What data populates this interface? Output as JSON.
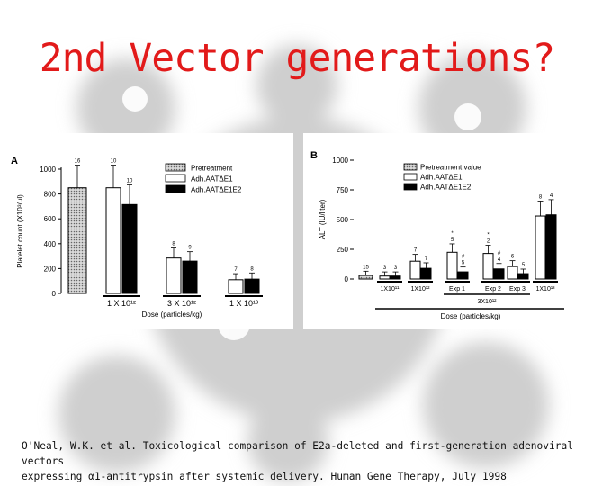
{
  "slide": {
    "title": "2nd Vector generations?",
    "citation_line1": "O'Neal, W.K. et al. Toxicological comparison of E2a-deleted and first-generation adenoviral vectors",
    "citation_line2": "expressing α1-antitrypsin after systemic delivery. Human Gene Therapy, July 1998",
    "colors": {
      "title": "#e21a1a",
      "bar_outline": "#000000",
      "bar_e1e2": "#000000",
      "bar_e1": "#ffffff",
      "bar_pre": "#d9d9d9"
    }
  },
  "chart_data": [
    {
      "type": "bar",
      "panel_label": "A",
      "ylabel": "Platelet count (X10³/µl)",
      "xlabel": "Dose (particles/kg)",
      "ylim": [
        0,
        1000
      ],
      "yticks": [
        "0",
        "200",
        "400",
        "600",
        "800",
        "1000"
      ],
      "dose_groups": [
        "1 X 10¹²",
        "3 X 10¹²",
        "1 X 10¹³"
      ],
      "legend": [
        "Pretreatment",
        "Adh.AATΔE1",
        "Adh.AATΔE1E2"
      ],
      "legend_position": "top-right",
      "series": [
        {
          "name": "Pretreatment",
          "values": [
            850
          ],
          "n_labels": [
            "16"
          ]
        },
        {
          "name": "Adh.AATΔE1",
          "values": [
            850,
            285,
            110
          ],
          "n_labels": [
            "10",
            "8",
            "7"
          ]
        },
        {
          "name": "Adh.AATΔE1E2",
          "values": [
            715,
            260,
            115
          ],
          "n_labels": [
            "10",
            "9",
            "8"
          ]
        }
      ]
    },
    {
      "type": "bar",
      "panel_label": "B",
      "ylabel": "ALT (IU/liter)",
      "xlabel": "Dose (particles/kg)",
      "ylim": [
        0,
        1000
      ],
      "yticks": [
        "0",
        "250",
        "500",
        "750",
        "1000"
      ],
      "dose_groups": [
        "1X10¹¹",
        "1X10¹²",
        "Exp 1",
        "Exp 2",
        "Exp 3",
        "1X10¹³"
      ],
      "subgroup_label": "3X10¹²",
      "legend": [
        "Pretreatment value",
        "Adh.AATΔE1",
        "Adh.AATΔE1E2"
      ],
      "legend_position": "top-right",
      "series": [
        {
          "name": "Pretreatment value",
          "values": [
            30
          ],
          "n_labels": [
            "15"
          ]
        },
        {
          "name": "Adh.AATΔE1",
          "values": [
            25,
            150,
            225,
            215,
            105,
            530
          ],
          "n_labels": [
            "3",
            "7",
            "*\n5",
            "*\n2",
            "6",
            "8"
          ]
        },
        {
          "name": "Adh.AATΔE1E2",
          "values": [
            25,
            90,
            60,
            85,
            45,
            540
          ],
          "n_labels": [
            "3",
            "7",
            "#\n5",
            "#\n4",
            "5",
            "4"
          ]
        }
      ]
    }
  ]
}
